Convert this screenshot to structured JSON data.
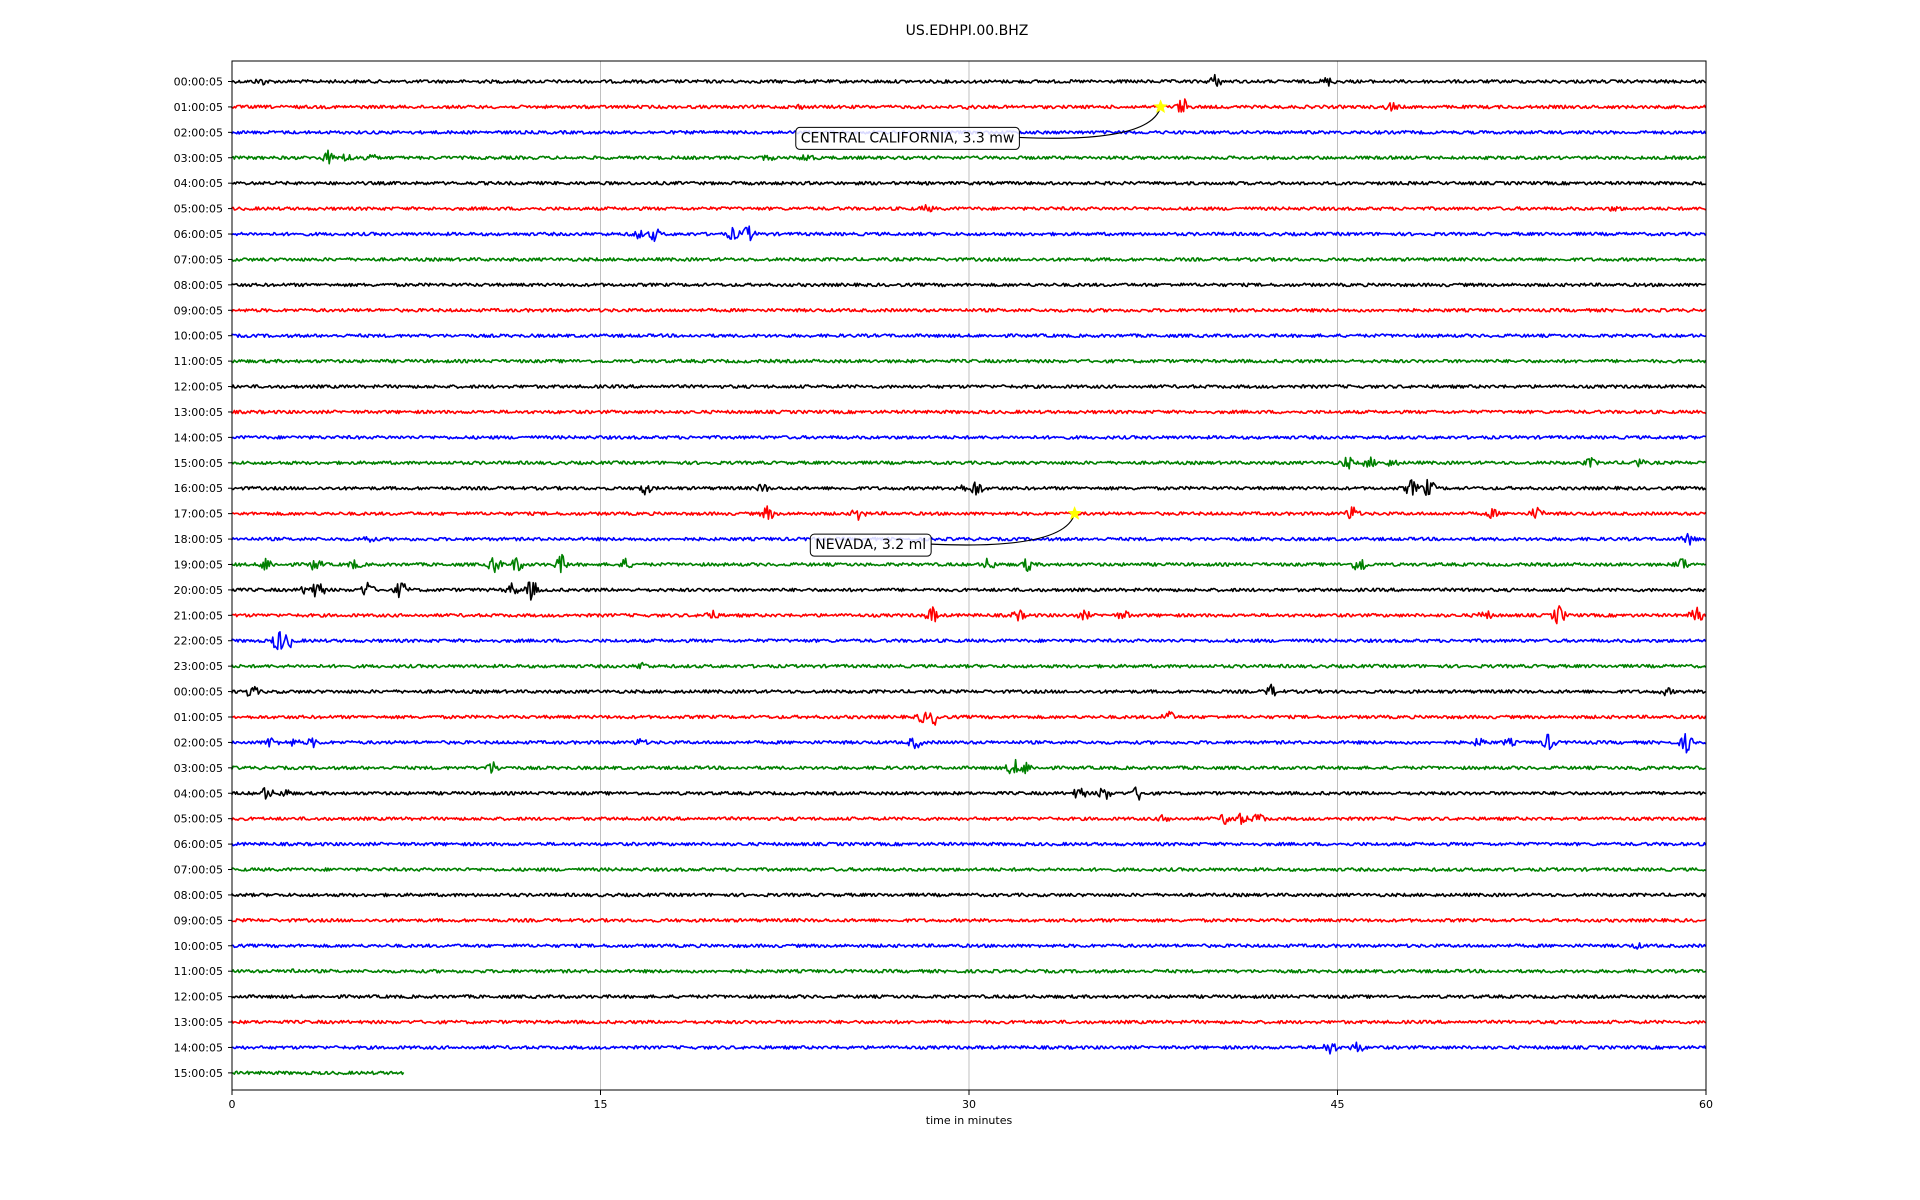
{
  "chart_data": {
    "type": "line",
    "title": "US.EDHPI.00.BHZ",
    "xlabel": "time in minutes",
    "ylabel": "",
    "xlim": [
      0,
      60
    ],
    "xticks": [
      0,
      15,
      30,
      45,
      60
    ],
    "grid": "vertical",
    "line_colors": [
      "#000000",
      "#ff0000",
      "#0000ff",
      "#008000"
    ],
    "rows": [
      {
        "label": "00:00:05",
        "end": 60,
        "bursts": [
          [
            1.2,
            3
          ],
          [
            40,
            6
          ],
          [
            44.6,
            4
          ]
        ]
      },
      {
        "label": "01:00:05",
        "end": 60,
        "bursts": [
          [
            23,
            2
          ],
          [
            30,
            2
          ],
          [
            38.7,
            9
          ],
          [
            47.2,
            4
          ]
        ]
      },
      {
        "label": "02:00:05",
        "end": 60,
        "bursts": []
      },
      {
        "label": "03:00:05",
        "end": 60,
        "bursts": [
          [
            3.9,
            6
          ],
          [
            4.7,
            4
          ],
          [
            5.6,
            4
          ],
          [
            21.8,
            2
          ],
          [
            23.4,
            4
          ]
        ]
      },
      {
        "label": "04:00:05",
        "end": 60,
        "bursts": []
      },
      {
        "label": "05:00:05",
        "end": 60,
        "bursts": [
          [
            28.3,
            3
          ],
          [
            56.3,
            2
          ]
        ]
      },
      {
        "label": "06:00:05",
        "end": 60,
        "bursts": [
          [
            16.5,
            4
          ],
          [
            17.2,
            6
          ],
          [
            20.4,
            6
          ],
          [
            21,
            8
          ]
        ]
      },
      {
        "label": "07:00:05",
        "end": 60,
        "bursts": []
      },
      {
        "label": "08:00:05",
        "end": 60,
        "bursts": []
      },
      {
        "label": "09:00:05",
        "end": 60,
        "bursts": []
      },
      {
        "label": "10:00:05",
        "end": 60,
        "bursts": []
      },
      {
        "label": "11:00:05",
        "end": 60,
        "bursts": []
      },
      {
        "label": "12:00:05",
        "end": 60,
        "bursts": []
      },
      {
        "label": "13:00:05",
        "end": 60,
        "bursts": []
      },
      {
        "label": "14:00:05",
        "end": 60,
        "bursts": []
      },
      {
        "label": "15:00:05",
        "end": 60,
        "bursts": [
          [
            45.4,
            6
          ],
          [
            46.3,
            5
          ],
          [
            47.2,
            3
          ],
          [
            55.3,
            4
          ],
          [
            57.2,
            4
          ]
        ]
      },
      {
        "label": "16:00:05",
        "end": 60,
        "bursts": [
          [
            16.8,
            6
          ],
          [
            21.6,
            4
          ],
          [
            29.6,
            4
          ],
          [
            30.3,
            8
          ],
          [
            48,
            8
          ],
          [
            48.7,
            9
          ]
        ]
      },
      {
        "label": "17:00:05",
        "end": 60,
        "bursts": [
          [
            21.8,
            7
          ],
          [
            25.5,
            6
          ],
          [
            45.6,
            8
          ],
          [
            51.3,
            4
          ],
          [
            53.1,
            6
          ]
        ]
      },
      {
        "label": "18:00:05",
        "end": 60,
        "bursts": [
          [
            5.5,
            3
          ],
          [
            59.3,
            6
          ]
        ]
      },
      {
        "label": "19:00:05",
        "end": 60,
        "bursts": [
          [
            1.4,
            7
          ],
          [
            3.4,
            6
          ],
          [
            5,
            4
          ],
          [
            10.7,
            9
          ],
          [
            11.6,
            7
          ],
          [
            13.4,
            9
          ],
          [
            16,
            5
          ],
          [
            30.8,
            6
          ],
          [
            32.4,
            6
          ],
          [
            45.9,
            10
          ],
          [
            59,
            7
          ]
        ]
      },
      {
        "label": "20:00:05",
        "end": 60,
        "bursts": [
          [
            3.1,
            7
          ],
          [
            3.5,
            9
          ],
          [
            5.5,
            8
          ],
          [
            6.9,
            9
          ],
          [
            11.4,
            6
          ],
          [
            12.2,
            10
          ],
          [
            50.5,
            2
          ]
        ]
      },
      {
        "label": "21:00:05",
        "end": 60,
        "bursts": [
          [
            19.5,
            5
          ],
          [
            28.5,
            8
          ],
          [
            32,
            5
          ],
          [
            34.7,
            4
          ],
          [
            36.3,
            4
          ],
          [
            51,
            5
          ],
          [
            54,
            10
          ],
          [
            59.6,
            10
          ]
        ]
      },
      {
        "label": "22:00:05",
        "end": 60,
        "bursts": [
          [
            1.9,
            12
          ],
          [
            2.3,
            7
          ]
        ]
      },
      {
        "label": "23:00:05",
        "end": 60,
        "bursts": [
          [
            16.7,
            3
          ]
        ]
      },
      {
        "label": "00:00:05",
        "end": 60,
        "bursts": [
          [
            0.8,
            6
          ],
          [
            42.3,
            6
          ],
          [
            58.4,
            3
          ]
        ]
      },
      {
        "label": "01:00:05",
        "end": 60,
        "bursts": [
          [
            28.1,
            5
          ],
          [
            28.6,
            7
          ],
          [
            38.1,
            6
          ]
        ]
      },
      {
        "label": "02:00:05",
        "end": 60,
        "bursts": [
          [
            1.6,
            5
          ],
          [
            2.5,
            3
          ],
          [
            3.3,
            4
          ],
          [
            16.6,
            3
          ],
          [
            27.8,
            6
          ],
          [
            50.8,
            4
          ],
          [
            52,
            3
          ],
          [
            53.6,
            8
          ],
          [
            59.2,
            9
          ]
        ]
      },
      {
        "label": "03:00:05",
        "end": 60,
        "bursts": [
          [
            10.6,
            6
          ],
          [
            31.8,
            9
          ],
          [
            32.3,
            6
          ],
          [
            57.3,
            2
          ]
        ]
      },
      {
        "label": "04:00:05",
        "end": 60,
        "bursts": [
          [
            1.4,
            6
          ],
          [
            2.2,
            3
          ],
          [
            34.5,
            6
          ],
          [
            35.5,
            7
          ],
          [
            36.9,
            7
          ]
        ]
      },
      {
        "label": "05:00:05",
        "end": 60,
        "bursts": [
          [
            38,
            4
          ],
          [
            40.5,
            6
          ],
          [
            41.1,
            5
          ],
          [
            41.8,
            5
          ]
        ]
      },
      {
        "label": "06:00:05",
        "end": 60,
        "bursts": []
      },
      {
        "label": "07:00:05",
        "end": 60,
        "bursts": []
      },
      {
        "label": "08:00:05",
        "end": 60,
        "bursts": []
      },
      {
        "label": "09:00:05",
        "end": 60,
        "bursts": []
      },
      {
        "label": "10:00:05",
        "end": 60,
        "bursts": [
          [
            57.2,
            2
          ]
        ]
      },
      {
        "label": "11:00:05",
        "end": 60,
        "bursts": [
          [
            2.4,
            2
          ]
        ]
      },
      {
        "label": "12:00:05",
        "end": 60,
        "bursts": []
      },
      {
        "label": "13:00:05",
        "end": 60,
        "bursts": []
      },
      {
        "label": "14:00:05",
        "end": 60,
        "bursts": [
          [
            44.7,
            7
          ],
          [
            45.8,
            5
          ]
        ]
      },
      {
        "label": "15:00:05",
        "end": 7,
        "bursts": []
      }
    ],
    "events": [
      {
        "label": "CENTRAL CALIFORNIA, 3.3 mw",
        "row": 1,
        "time": 37.8,
        "label_row": 2.2,
        "label_time": 27.5
      },
      {
        "label": "NEVADA, 3.2 ml",
        "row": 17,
        "time": 34.3,
        "label_row": 18.2,
        "label_time": 26.0
      }
    ]
  }
}
